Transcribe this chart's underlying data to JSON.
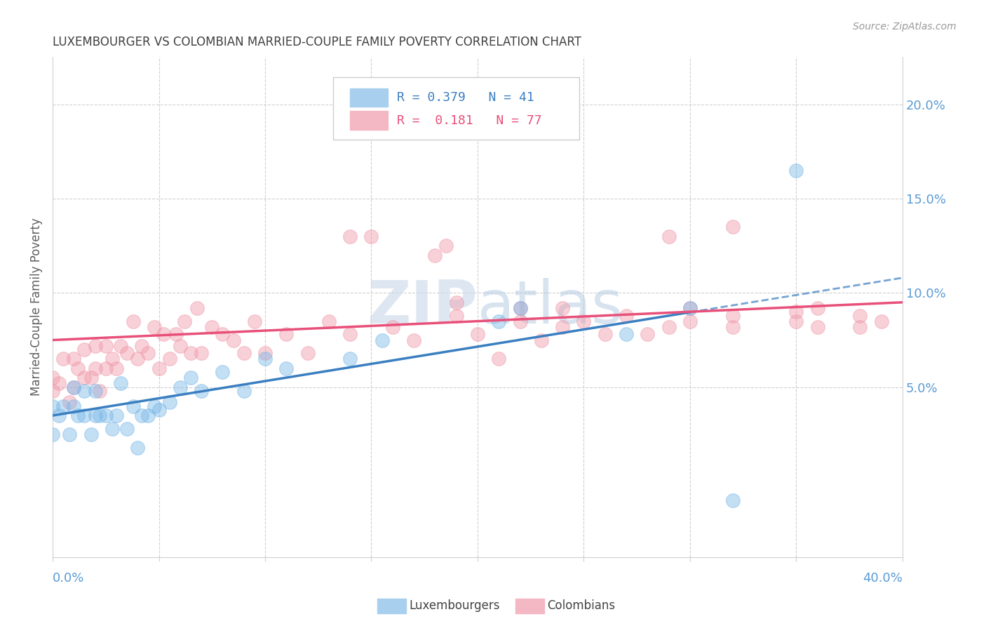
{
  "title": "LUXEMBOURGER VS COLOMBIAN MARRIED-COUPLE FAMILY POVERTY CORRELATION CHART",
  "source": "Source: ZipAtlas.com",
  "ylabel": "Married-Couple Family Poverty",
  "y_ticks": [
    0.05,
    0.1,
    0.15,
    0.2
  ],
  "y_tick_labels": [
    "5.0%",
    "10.0%",
    "15.0%",
    "20.0%"
  ],
  "x_range": [
    0.0,
    0.4
  ],
  "y_range": [
    -0.04,
    0.225
  ],
  "lux_R": 0.379,
  "lux_N": 41,
  "col_R": 0.181,
  "col_N": 77,
  "lux_scatter_color": "#7ab8e8",
  "col_scatter_color": "#f09aaa",
  "lux_line_color": "#3a7fc1",
  "col_line_color": "#e8507a",
  "lux_swatch_color": "#a8d0ee",
  "col_swatch_color": "#f4b8c4",
  "watermark_color": "#dce8f5",
  "grid_color": "#d0d0d0",
  "title_color": "#404040",
  "ylabel_color": "#606060",
  "tick_color": "#5b9bd5",
  "source_color": "#999999",
  "lux_points_x": [
    0.0,
    0.0,
    0.003,
    0.005,
    0.008,
    0.01,
    0.01,
    0.012,
    0.015,
    0.015,
    0.018,
    0.02,
    0.02,
    0.022,
    0.025,
    0.028,
    0.03,
    0.032,
    0.035,
    0.038,
    0.04,
    0.042,
    0.045,
    0.048,
    0.05,
    0.055,
    0.06,
    0.065,
    0.07,
    0.08,
    0.09,
    0.1,
    0.11,
    0.14,
    0.155,
    0.21,
    0.22,
    0.27,
    0.3,
    0.32,
    0.35
  ],
  "lux_points_y": [
    0.04,
    0.025,
    0.035,
    0.04,
    0.025,
    0.04,
    0.05,
    0.035,
    0.035,
    0.048,
    0.025,
    0.035,
    0.048,
    0.035,
    0.035,
    0.028,
    0.035,
    0.052,
    0.028,
    0.04,
    0.018,
    0.035,
    0.035,
    0.04,
    0.038,
    0.042,
    0.05,
    0.055,
    0.048,
    0.058,
    0.048,
    0.065,
    0.06,
    0.065,
    0.075,
    0.085,
    0.092,
    0.078,
    0.092,
    -0.01,
    0.165
  ],
  "col_points_x": [
    0.0,
    0.0,
    0.003,
    0.005,
    0.008,
    0.01,
    0.01,
    0.012,
    0.015,
    0.015,
    0.018,
    0.02,
    0.02,
    0.022,
    0.025,
    0.025,
    0.028,
    0.03,
    0.032,
    0.035,
    0.038,
    0.04,
    0.042,
    0.045,
    0.048,
    0.05,
    0.052,
    0.055,
    0.058,
    0.06,
    0.062,
    0.065,
    0.068,
    0.07,
    0.075,
    0.08,
    0.085,
    0.09,
    0.095,
    0.1,
    0.11,
    0.12,
    0.13,
    0.14,
    0.16,
    0.17,
    0.18,
    0.19,
    0.2,
    0.21,
    0.22,
    0.23,
    0.24,
    0.25,
    0.26,
    0.27,
    0.28,
    0.29,
    0.3,
    0.32,
    0.35,
    0.36,
    0.38,
    0.39,
    0.185,
    0.29,
    0.32,
    0.14,
    0.19,
    0.24,
    0.3,
    0.32,
    0.35,
    0.36,
    0.38,
    0.15,
    0.22
  ],
  "col_points_y": [
    0.055,
    0.048,
    0.052,
    0.065,
    0.042,
    0.05,
    0.065,
    0.06,
    0.055,
    0.07,
    0.055,
    0.06,
    0.072,
    0.048,
    0.06,
    0.072,
    0.065,
    0.06,
    0.072,
    0.068,
    0.085,
    0.065,
    0.072,
    0.068,
    0.082,
    0.06,
    0.078,
    0.065,
    0.078,
    0.072,
    0.085,
    0.068,
    0.092,
    0.068,
    0.082,
    0.078,
    0.075,
    0.068,
    0.085,
    0.068,
    0.078,
    0.068,
    0.085,
    0.078,
    0.082,
    0.075,
    0.12,
    0.088,
    0.078,
    0.065,
    0.085,
    0.075,
    0.082,
    0.085,
    0.078,
    0.088,
    0.078,
    0.082,
    0.085,
    0.082,
    0.085,
    0.082,
    0.082,
    0.085,
    0.125,
    0.13,
    0.135,
    0.13,
    0.095,
    0.092,
    0.092,
    0.088,
    0.09,
    0.092,
    0.088,
    0.13,
    0.092
  ]
}
